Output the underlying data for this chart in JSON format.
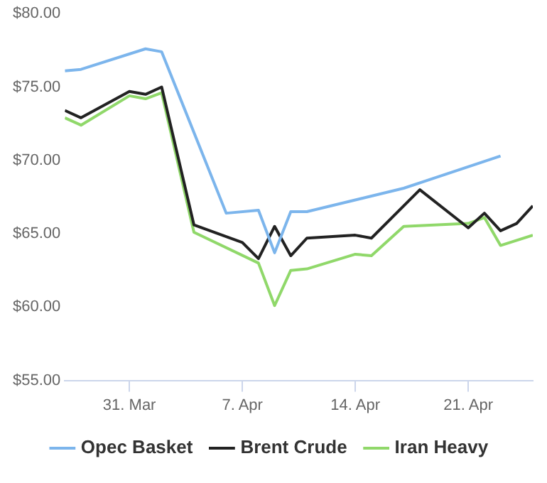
{
  "chart_data": {
    "type": "line",
    "xlim": [
      "--03-27",
      "--04-25"
    ],
    "xticks": [
      {
        "value": "--03-31",
        "label": "31. Mar"
      },
      {
        "value": "--04-07",
        "label": "7. Apr"
      },
      {
        "value": "--04-14",
        "label": "14. Apr"
      },
      {
        "value": "--04-21",
        "label": "21. Apr"
      }
    ],
    "ylim": [
      55,
      80
    ],
    "yticks": [
      {
        "value": 55,
        "label": "$55.00"
      },
      {
        "value": 60,
        "label": "$60.00"
      },
      {
        "value": 65,
        "label": "$65.00"
      },
      {
        "value": 70,
        "label": "$70.00"
      },
      {
        "value": 75,
        "label": "$75.00"
      },
      {
        "value": 80,
        "label": "$80.00"
      }
    ],
    "grid": false,
    "legend": "bottom",
    "marker": "none",
    "line_style": "solid",
    "series": [
      {
        "name": "Opec Basket",
        "color": "#7cb5ec",
        "x": [
          "--03-27",
          "--03-28",
          "--04-01",
          "--04-02",
          "--04-06",
          "--04-08",
          "--04-09",
          "--04-10",
          "--04-11",
          "--04-17",
          "--04-23"
        ],
        "values": [
          76.1,
          76.2,
          77.6,
          77.4,
          66.4,
          66.6,
          63.7,
          66.5,
          66.5,
          68.1,
          70.3
        ]
      },
      {
        "name": "Brent Crude",
        "color": "#222222",
        "x": [
          "--03-27",
          "--03-28",
          "--03-31",
          "--04-01",
          "--04-02",
          "--04-04",
          "--04-07",
          "--04-08",
          "--04-09",
          "--04-10",
          "--04-11",
          "--04-14",
          "--04-15",
          "--04-18",
          "--04-21",
          "--04-22",
          "--04-23",
          "--04-24",
          "--04-25"
        ],
        "values": [
          73.4,
          72.9,
          74.7,
          74.5,
          75.0,
          65.6,
          64.4,
          63.3,
          65.5,
          63.5,
          64.7,
          64.9,
          64.7,
          68.0,
          65.4,
          66.4,
          65.2,
          65.7,
          66.9
        ]
      },
      {
        "name": "Iran Heavy",
        "color": "#90d86a",
        "x": [
          "--03-27",
          "--03-28",
          "--03-31",
          "--04-01",
          "--04-02",
          "--04-04",
          "--04-08",
          "--04-09",
          "--04-10",
          "--04-11",
          "--04-14",
          "--04-15",
          "--04-17",
          "--04-21",
          "--04-22",
          "--04-23",
          "--04-25"
        ],
        "values": [
          72.9,
          72.4,
          74.4,
          74.2,
          74.6,
          65.1,
          63.0,
          60.1,
          62.5,
          62.6,
          63.6,
          63.5,
          65.5,
          65.7,
          66.1,
          64.2,
          64.9
        ]
      }
    ]
  }
}
